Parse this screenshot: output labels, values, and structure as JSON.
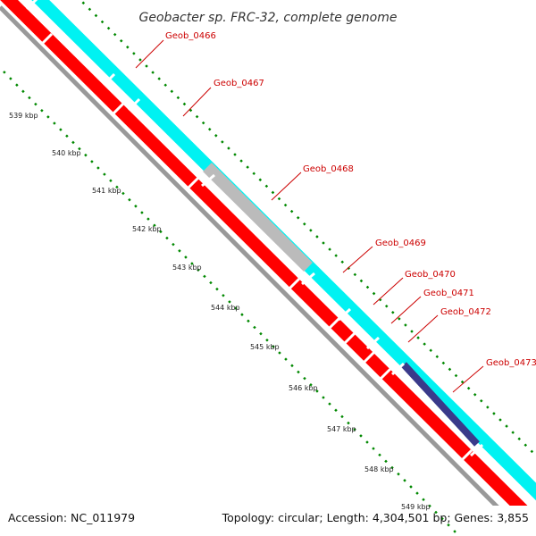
{
  "title": "Geobacter sp. FRC-32, complete genome",
  "footer": {
    "accession": "Accession: NC_011979",
    "stats": "Topology: circular; Length: 4,304,501 bp; Genes: 3,855"
  },
  "colors": {
    "cds_forward": "#ff0000",
    "cds_forward_outline": "#aa0000",
    "gene_track": "#00ffff",
    "gene_track_gap": "#ffffff",
    "rna_gene": "#bbbbbb",
    "other_feature": "#3a3a8a",
    "backbone": "#888888",
    "tick": "#008800",
    "label": "#cc0000"
  },
  "gene_labels": [
    "Geob_0466",
    "Geob_0467",
    "Geob_0468",
    "Geob_0469",
    "Geob_0470",
    "Geob_0471",
    "Geob_0472",
    "Geob_0473"
  ],
  "kbp_labels": [
    "539 kbp",
    "540 kbp",
    "541 kbp",
    "542 kbp",
    "543 kbp",
    "544 kbp",
    "545 kbp",
    "546 kbp",
    "547 kbp",
    "548 kbp"
  ],
  "partial_kbp_label": "549 kbp"
}
